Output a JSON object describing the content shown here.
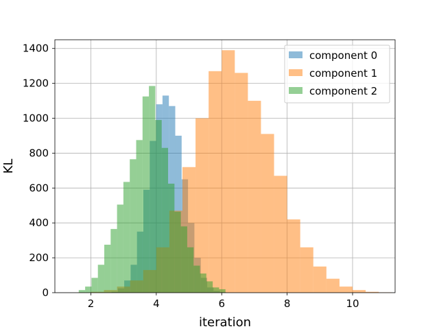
{
  "chart_data": {
    "type": "bar",
    "subtype": "overlapping-histogram",
    "title": "",
    "xlabel": "iteration",
    "ylabel": "KL",
    "xlim": [
      0.9,
      11.3
    ],
    "ylim": [
      0,
      1450
    ],
    "xticks": [
      2,
      4,
      6,
      8,
      10
    ],
    "yticks": [
      0,
      200,
      400,
      600,
      800,
      1000,
      1200,
      1400
    ],
    "grid": true,
    "legend_position": "top-right",
    "bar_opacity": 0.5,
    "series": [
      {
        "name": "component 0",
        "color": "#1f77b4",
        "bin_edges": [
          2.63,
          2.825,
          3.02,
          3.215,
          3.41,
          3.605,
          3.8,
          3.995,
          4.19,
          4.385,
          4.58,
          4.775,
          4.97,
          5.165,
          5.36,
          5.555,
          5.75,
          5.945,
          6.14
        ],
        "values": [
          5,
          25,
          70,
          160,
          350,
          590,
          870,
          1080,
          1130,
          1070,
          900,
          650,
          400,
          200,
          85,
          30,
          10,
          3
        ]
      },
      {
        "name": "component 1",
        "color": "#ff7f0e",
        "bin_edges": [
          1.6,
          2.0,
          2.4,
          2.8,
          3.2,
          3.6,
          4.0,
          4.4,
          4.8,
          5.2,
          5.6,
          6.0,
          6.4,
          6.8,
          7.2,
          7.6,
          8.0,
          8.4,
          8.8,
          9.2,
          9.6,
          10.0,
          10.4,
          10.8,
          11.2
        ],
        "values": [
          2,
          5,
          15,
          35,
          70,
          130,
          260,
          470,
          720,
          1000,
          1270,
          1390,
          1260,
          1100,
          910,
          670,
          420,
          260,
          150,
          80,
          35,
          15,
          5,
          2
        ]
      },
      {
        "name": "component 2",
        "color": "#2ca02c",
        "bin_edges": [
          1.63,
          1.825,
          2.02,
          2.215,
          2.41,
          2.605,
          2.8,
          2.995,
          3.19,
          3.385,
          3.58,
          3.775,
          3.97,
          4.165,
          4.36,
          4.555,
          4.75,
          4.945,
          5.14,
          5.335,
          5.53,
          5.725,
          5.92,
          6.115
        ],
        "values": [
          15,
          35,
          85,
          160,
          275,
          365,
          505,
          635,
          765,
          875,
          1125,
          1185,
          990,
          830,
          625,
          465,
          380,
          260,
          155,
          110,
          65,
          30,
          20
        ]
      }
    ]
  }
}
